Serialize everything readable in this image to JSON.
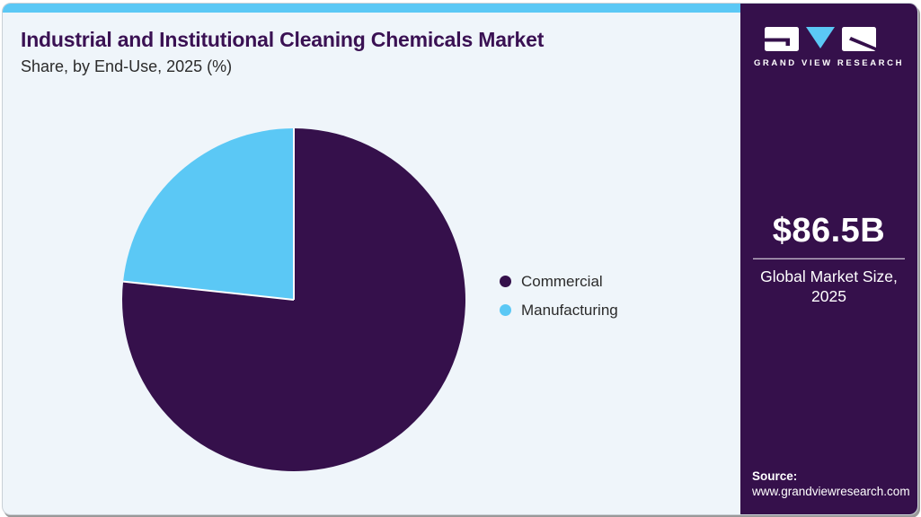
{
  "header": {
    "title": "Industrial and Institutional Cleaning Chemicals Market",
    "subtitle": "Share, by End-Use, 2025 (%)"
  },
  "chart_data": {
    "type": "pie",
    "title": "Industrial and Institutional Cleaning Chemicals Market Share, by End-Use, 2025 (%)",
    "categories": [
      "Commercial",
      "Manufacturing"
    ],
    "values": [
      76.7,
      23.3
    ],
    "colors": [
      "#35104B",
      "#5BC8F5"
    ],
    "unit": "%",
    "start_angle_deg": 0,
    "direction": "clockwise",
    "legend_position": "right",
    "slice_separator_color": "#FFFFFF"
  },
  "sidebar": {
    "logo_text": "GRAND VIEW RESEARCH",
    "market_size_value": "$86.5B",
    "market_size_label_line1": "Global Market Size,",
    "market_size_label_line2": "2025",
    "source_label": "Source:",
    "source_url": "www.grandviewresearch.com"
  },
  "colors": {
    "accent_purple": "#35104B",
    "accent_blue": "#5BC8F5",
    "card_background": "#EFF5FA",
    "title_text": "#3A1153",
    "body_text": "#2B2B2B"
  }
}
